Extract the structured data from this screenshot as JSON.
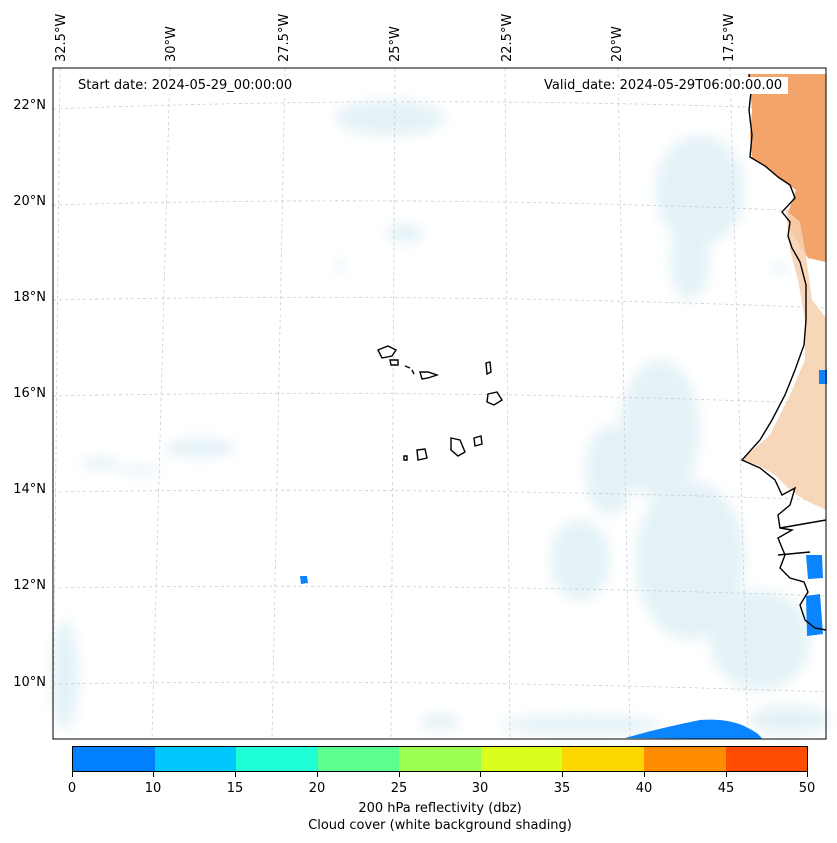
{
  "map": {
    "start_date": "Start date: 2024-05-29_00:00:00",
    "valid_date": "Valid_date: 2024-05-29T06:00:00.00",
    "lon_labels": [
      "32.5°W",
      "30°W",
      "27.5°W",
      "25°W",
      "22.5°W",
      "20°W",
      "17.5°W"
    ],
    "lat_labels": [
      "22°N",
      "20°N",
      "18°N",
      "16°N",
      "14°N",
      "12°N",
      "10°N"
    ],
    "colors": {
      "land_warm": "#f3a46b",
      "land_pale": "#f7cfae",
      "reflectivity_low": "#0a84ff",
      "cloud_shade": "#dbeef4",
      "coast": "#000000",
      "grid": "#cccccc"
    }
  },
  "colorbar": {
    "ticks": [
      "0",
      "10",
      "15",
      "20",
      "25",
      "30",
      "35",
      "40",
      "45",
      "50"
    ],
    "colors": [
      "#0080ff",
      "#00c8ff",
      "#1effd8",
      "#5cff8c",
      "#9aff50",
      "#d8ff1e",
      "#ffd700",
      "#ff8c00",
      "#ff4c00"
    ],
    "label_line1": "200 hPa reflectivity (dbz)",
    "label_line2": "Cloud cover (white background shading)"
  }
}
